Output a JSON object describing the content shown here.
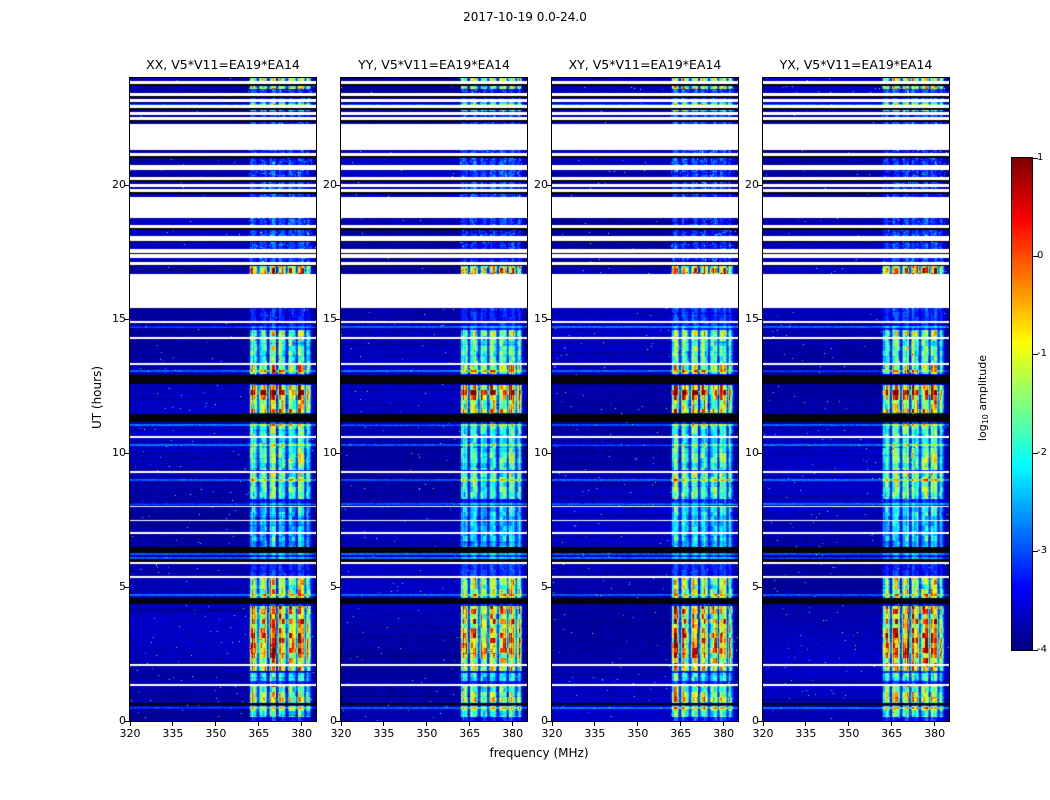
{
  "figure": {
    "title": "2017-10-19 0.0-24.0",
    "background_color": "#ffffff"
  },
  "chart_data": {
    "type": "heatmap",
    "description": "Dynamic spectra (UT hours vs frequency) of log10 correlation amplitude for four polarization products of baseline V5*V11=EA19*EA14, jet colormap, with white gaps (no data), black flagged rows, and a bright RFI band near 362-383 MHz",
    "panels": [
      {
        "id": "xx",
        "label": "XX, V5*V11=EA19*EA14",
        "seed": 11
      },
      {
        "id": "yy",
        "label": "YY, V5*V11=EA19*EA14",
        "seed": 22
      },
      {
        "id": "xy",
        "label": "XY, V5*V11=EA19*EA14",
        "seed": 33
      },
      {
        "id": "yx",
        "label": "YX, V5*V11=EA19*EA14",
        "seed": 44
      }
    ],
    "xlabel": "frequency (MHz)",
    "ylabel": "UT (hours)",
    "x_range": [
      320,
      385
    ],
    "x_ticks": [
      320,
      335,
      350,
      365,
      380
    ],
    "y_range": [
      0,
      24
    ],
    "y_ticks": [
      0,
      5,
      10,
      15,
      20
    ],
    "value_range": [
      -4,
      1
    ],
    "colormap": "jet",
    "colorbar": {
      "label_parts": {
        "prefix": "log",
        "sub": "10",
        "suffix": " amplitude"
      },
      "ticks": [
        1,
        0,
        -1,
        -2,
        -3,
        -4
      ]
    },
    "noise": {
      "mean": -3.75,
      "sigma": 0.18
    },
    "rfi_band": {
      "f0": 361.5,
      "f1": 383.5,
      "baseline_strength": 0.18,
      "top_baseline": 0.2,
      "sub_edges": [
        364.8,
        368.2,
        371.5,
        374.8,
        378.2,
        381.3
      ],
      "edge_lines": [
        {
          "f": 362.1,
          "gain": 1.0
        },
        {
          "f": 381.0,
          "gain": 0.7
        }
      ]
    },
    "white_gaps": [
      [
        1.3,
        1.38
      ],
      [
        2.05,
        2.12
      ],
      [
        5.35,
        5.42
      ],
      [
        5.86,
        5.93
      ],
      [
        6.97,
        7.04
      ],
      [
        7.45,
        7.52
      ],
      [
        7.97,
        8.04
      ],
      [
        9.27,
        9.34
      ],
      [
        10.55,
        10.62
      ],
      [
        13.3,
        13.37
      ],
      [
        14.25,
        14.32
      ],
      [
        14.85,
        14.92
      ],
      [
        15.4,
        16.62
      ],
      [
        17.28,
        17.42
      ],
      [
        17.97,
        18.12
      ],
      [
        18.78,
        19.55
      ],
      [
        19.93,
        20.03
      ],
      [
        20.55,
        20.65
      ],
      [
        21.32,
        22.28
      ],
      [
        22.62,
        22.72
      ],
      [
        23.1,
        23.2
      ]
    ],
    "flagged_black": [
      [
        0.6,
        0.68
      ],
      [
        4.35,
        4.58
      ],
      [
        5.95,
        6.05
      ],
      [
        6.27,
        6.5
      ],
      [
        11.15,
        11.45
      ],
      [
        12.58,
        12.92
      ]
    ],
    "bright_events": [
      {
        "t0": 0.15,
        "t1": 0.55,
        "s": 0.45
      },
      {
        "t0": 0.6,
        "t1": 1.3,
        "s": 0.6
      },
      {
        "t0": 1.5,
        "t1": 1.8,
        "s": 0.4
      },
      {
        "t0": 1.85,
        "t1": 2.5,
        "s": 0.8
      },
      {
        "t0": 2.5,
        "t1": 3.3,
        "s": 1.0
      },
      {
        "t0": 3.3,
        "t1": 4.3,
        "s": 0.85
      },
      {
        "t0": 4.6,
        "t1": 5.35,
        "s": 0.55
      },
      {
        "t0": 6.5,
        "t1": 8.0,
        "s": 0.3
      },
      {
        "t0": 8.3,
        "t1": 9.3,
        "s": 0.5
      },
      {
        "t0": 9.35,
        "t1": 11.1,
        "s": 0.42
      },
      {
        "t0": 11.5,
        "t1": 12.0,
        "s": 0.75
      },
      {
        "t0": 12.0,
        "t1": 12.55,
        "s": 0.95
      },
      {
        "t0": 12.95,
        "t1": 13.6,
        "s": 0.6
      },
      {
        "t0": 13.6,
        "t1": 14.6,
        "s": 0.5
      },
      {
        "t0": 16.65,
        "t1": 17.05,
        "s": 0.85
      },
      {
        "t0": 22.75,
        "t1": 23.1,
        "s": 0.4
      },
      {
        "t0": 23.6,
        "t1": 24.0,
        "s": 0.55
      }
    ],
    "bright_rows": [
      0.5,
      4.7,
      6.1,
      6.22,
      8.1,
      9.0,
      10.3,
      11.05,
      13.05,
      14.7,
      23.0
    ],
    "striped_region": {
      "t0": 15.35,
      "t1": 24.0,
      "period": 0.45,
      "data_frac": 0.6,
      "black_frac": 0.14
    }
  }
}
